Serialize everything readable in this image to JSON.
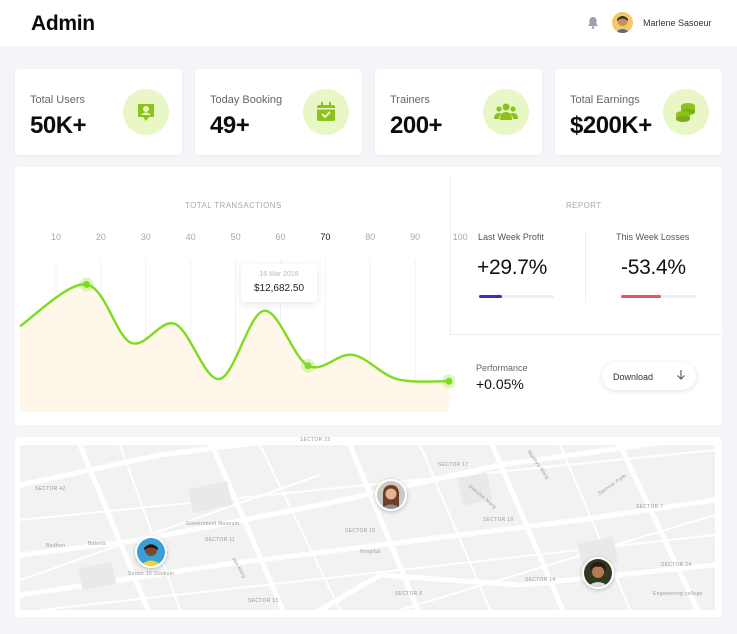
{
  "header": {
    "title": "Admin",
    "notification_icon": "bell-icon",
    "user_name": "Marlene Sasoeur"
  },
  "stats": [
    {
      "label": "Total Users",
      "value": "50K+",
      "icon": "user-badge-icon"
    },
    {
      "label": "Today Booking",
      "value": "49+",
      "icon": "calendar-check-icon"
    },
    {
      "label": "Trainers",
      "value": "200+",
      "icon": "group-icon"
    },
    {
      "label": "Total Earnings",
      "value": "$200K+",
      "icon": "coins-icon"
    }
  ],
  "transactions": {
    "title": "TOTAL TRANSACTIONS",
    "x_ticks": [
      "10",
      "20",
      "30",
      "40",
      "50",
      "60",
      "70",
      "80",
      "90",
      "100"
    ],
    "active_tick": "70",
    "tooltip_date": "16 Mar 2018",
    "tooltip_value": "$12,682.50"
  },
  "chart_data": {
    "type": "line",
    "title": "TOTAL TRANSACTIONS",
    "x": [
      10,
      20,
      30,
      40,
      50,
      60,
      70,
      80,
      90,
      100
    ],
    "series": [
      {
        "values": [
          0.58,
          0.96,
          0.43,
          0.6,
          0.1,
          0.72,
          0.22,
          0.32,
          0.1,
          0.08
        ]
      }
    ],
    "highlight": {
      "x": 70,
      "label": "$12,682.50",
      "date": "16 Mar 2018"
    },
    "grid": true,
    "colors": {
      "line": "#7ddc1f",
      "area": "#fff8ea"
    }
  },
  "report": {
    "title": "REPORT",
    "profit_label": "Last Week Profit",
    "profit_value": "+29.7%",
    "profit_progress": 0.3,
    "losses_label": "This Week Losses",
    "losses_value": "-53.4%",
    "losses_progress": 0.53,
    "profit_color": "#3a2cc7",
    "losses_color": "#ef5454"
  },
  "performance": {
    "label": "Performance",
    "value": "+0.05%",
    "download_label": "Download",
    "download_icon": "arrow-down-icon"
  },
  "map": {
    "labels": [
      {
        "text": "SECTOR 42"
      },
      {
        "text": "SECTOR 22"
      },
      {
        "text": "SECTOR 17"
      },
      {
        "text": "SECTOR 15"
      },
      {
        "text": "SECTOR 11"
      },
      {
        "text": "SECTOR 19"
      },
      {
        "text": "SECTOR 14"
      },
      {
        "text": "SECTOR 7"
      },
      {
        "text": "SECTOR 8"
      },
      {
        "text": "SECTOR 24"
      },
      {
        "text": "SECTOR 10"
      },
      {
        "text": "Sector 16 Stadium"
      },
      {
        "text": "Madhya Marg"
      },
      {
        "text": "Jan Marg"
      },
      {
        "text": "Dakshin Marg"
      },
      {
        "text": "Sarovar Path"
      },
      {
        "text": "Buterla"
      },
      {
        "text": "Badheri"
      },
      {
        "text": "Hospital"
      },
      {
        "text": "Government Museum"
      },
      {
        "text": "Engineering college"
      }
    ]
  }
}
